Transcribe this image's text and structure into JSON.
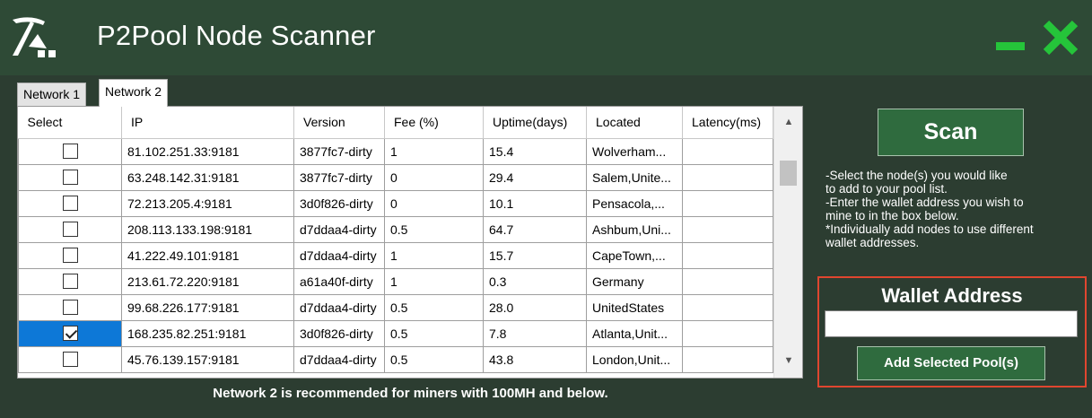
{
  "app": {
    "title": "P2Pool Node Scanner",
    "colors": {
      "titlebar": "#2e4a36",
      "background": "#2c3d31",
      "accent": "#25c43a",
      "button": "#2f6b3e",
      "highlight_border": "#e0462f",
      "selection": "#0d78d7"
    },
    "icons": {
      "logo": "pickaxe-logo-icon",
      "minimize": "minimize-icon",
      "close": "close-icon"
    }
  },
  "tabs": [
    {
      "label": "Network 1",
      "active": false
    },
    {
      "label": "Network 2",
      "active": true
    }
  ],
  "grid": {
    "columns": [
      "Select",
      "IP",
      "Version",
      "Fee (%)",
      "Uptime(days)",
      "Located",
      "Latency(ms)"
    ],
    "rows": [
      {
        "checked": false,
        "selected": false,
        "ip": "81.102.251.33:9181",
        "version": "3877fc7-dirty",
        "fee": "1",
        "uptime": "15.4",
        "located": "Wolverham...",
        "latency": ""
      },
      {
        "checked": false,
        "selected": false,
        "ip": "63.248.142.31:9181",
        "version": "3877fc7-dirty",
        "fee": "0",
        "uptime": "29.4",
        "located": "Salem,Unite...",
        "latency": ""
      },
      {
        "checked": false,
        "selected": false,
        "ip": "72.213.205.4:9181",
        "version": "3d0f826-dirty",
        "fee": "0",
        "uptime": "10.1",
        "located": "Pensacola,...",
        "latency": ""
      },
      {
        "checked": false,
        "selected": false,
        "ip": "208.113.133.198:9181",
        "version": "d7ddaa4-dirty",
        "fee": "0.5",
        "uptime": "64.7",
        "located": "Ashbum,Uni...",
        "latency": ""
      },
      {
        "checked": false,
        "selected": false,
        "ip": "41.222.49.101:9181",
        "version": "d7ddaa4-dirty",
        "fee": "1",
        "uptime": "15.7",
        "located": "CapeTown,...",
        "latency": ""
      },
      {
        "checked": false,
        "selected": false,
        "ip": "213.61.72.220:9181",
        "version": "a61a40f-dirty",
        "fee": "1",
        "uptime": "0.3",
        "located": "Germany",
        "latency": ""
      },
      {
        "checked": false,
        "selected": false,
        "ip": "99.68.226.177:9181",
        "version": "d7ddaa4-dirty",
        "fee": "0.5",
        "uptime": "28.0",
        "located": "UnitedStates",
        "latency": ""
      },
      {
        "checked": true,
        "selected": true,
        "ip": "168.235.82.251:9181",
        "version": "3d0f826-dirty",
        "fee": "0.5",
        "uptime": "7.8",
        "located": "Atlanta,Unit...",
        "latency": ""
      },
      {
        "checked": false,
        "selected": false,
        "ip": "45.76.139.157:9181",
        "version": "d7ddaa4-dirty",
        "fee": "0.5",
        "uptime": "43.8",
        "located": "London,Unit...",
        "latency": ""
      }
    ]
  },
  "footnote": "Network 2 is recommended for miners with 100MH and below.",
  "scan_button": "Scan",
  "instructions": [
    "-Select the node(s) you would like",
    "to add to your pool list.",
    "-Enter the wallet address you wish to",
    "mine to in the box below.",
    "*Individually add nodes to use different",
    "wallet addresses."
  ],
  "wallet": {
    "title": "Wallet Address",
    "value": "",
    "add_button": "Add Selected Pool(s)"
  }
}
